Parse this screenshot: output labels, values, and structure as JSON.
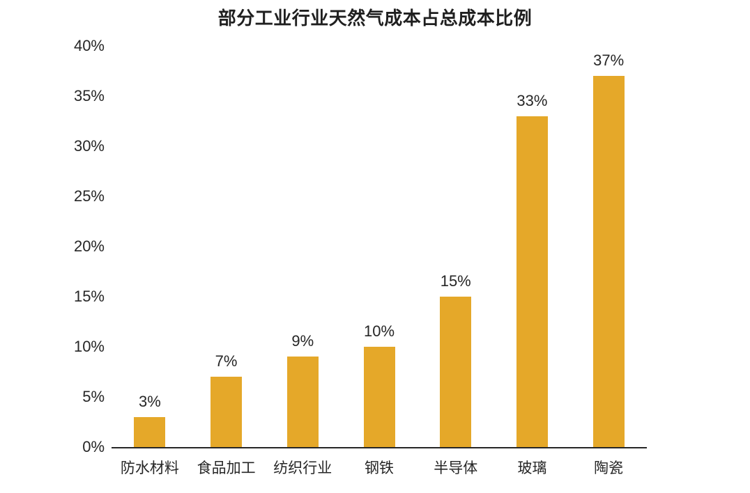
{
  "chart_data": {
    "type": "bar",
    "title": "部分工业行业天然气成本占总成本比例",
    "categories": [
      "防水材料",
      "食品加工",
      "纺织行业",
      "钢铁",
      "半导体",
      "玻璃",
      "陶瓷"
    ],
    "values": [
      3,
      7,
      9,
      10,
      15,
      33,
      37
    ],
    "data_labels": [
      "3%",
      "7%",
      "9%",
      "10%",
      "15%",
      "33%",
      "37%"
    ],
    "y_ticks": [
      "0%",
      "5%",
      "10%",
      "15%",
      "20%",
      "25%",
      "30%",
      "35%",
      "40%"
    ],
    "xlabel": "",
    "ylabel": "",
    "ylim": [
      0,
      40
    ],
    "grid": false,
    "legend_position": "none",
    "bar_color": "#E5A829",
    "axis_line_color": "#262626",
    "text_color": "#262626",
    "background_color": "#ffffff"
  }
}
